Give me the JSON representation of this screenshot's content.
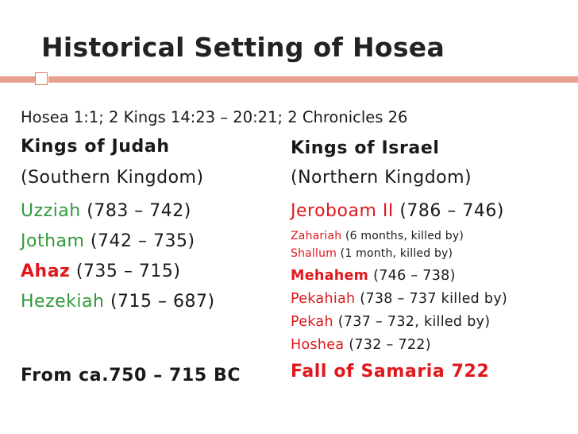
{
  "slide": {
    "title": "Historical Setting of Hosea",
    "reference": "Hosea 1:1; 2 Kings 14:23 – 20:21; 2 Chronicles 26",
    "judah": {
      "heading": "Kings of Judah",
      "subheading": "(Southern Kingdom)",
      "kings": [
        {
          "name": "Uzziah",
          "dates": " (783 – 742)"
        },
        {
          "name": "Jotham",
          "dates": " (742 – 735)"
        },
        {
          "name": "Ahaz",
          "dates": " (735 – 715)"
        },
        {
          "name": "Hezekiah",
          "dates": " (715 – 687)"
        }
      ],
      "footer": "From ca.750 – 715 BC"
    },
    "israel": {
      "heading": "Kings of Israel",
      "subheading": "(Northern Kingdom)",
      "kings": [
        {
          "name": "Jeroboam II",
          "dates": " (786 – 746)"
        },
        {
          "name": "Zahariah",
          "dates": " (6 months, killed by)"
        },
        {
          "name": "Shallum",
          "dates": " (1 month, killed by)"
        },
        {
          "name": "Mehahem",
          "dates": " (746 – 738)"
        },
        {
          "name": "Pekahiah",
          "dates": " (738 – 737 killed by)"
        },
        {
          "name": "Pekah",
          "dates": " (737 – 732, killed by)"
        },
        {
          "name": "Hoshea",
          "dates": " (732 – 722)"
        }
      ],
      "footer": "Fall of Samaria 722"
    },
    "colors": {
      "accent_bar": "#e8a08c",
      "judah_king": "#2f9a3a",
      "israel_king": "#e0181c"
    }
  }
}
